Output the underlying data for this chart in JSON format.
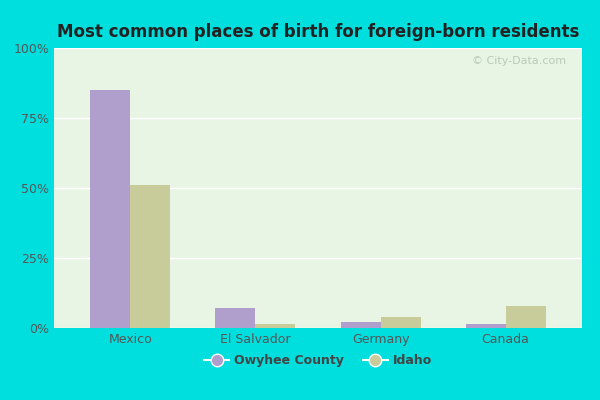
{
  "title": "Most common places of birth for foreign-born residents",
  "categories": [
    "Mexico",
    "El Salvador",
    "Germany",
    "Canada"
  ],
  "owyhee_values": [
    85,
    7,
    2,
    1.5
  ],
  "idaho_values": [
    51,
    1.5,
    4,
    8
  ],
  "owyhee_color": "#b09fcc",
  "idaho_color": "#c8cc9a",
  "background_top": "#e6f5e6",
  "background_bottom": "#f0faf0",
  "bar_width": 0.32,
  "ylim": [
    0,
    100
  ],
  "yticks": [
    0,
    25,
    50,
    75,
    100
  ],
  "legend_labels": [
    "Owyhee County",
    "Idaho"
  ],
  "outer_background": "#00dede",
  "watermark": "© City-Data.com",
  "title_fontsize": 12,
  "tick_fontsize": 9,
  "legend_fontsize": 9
}
